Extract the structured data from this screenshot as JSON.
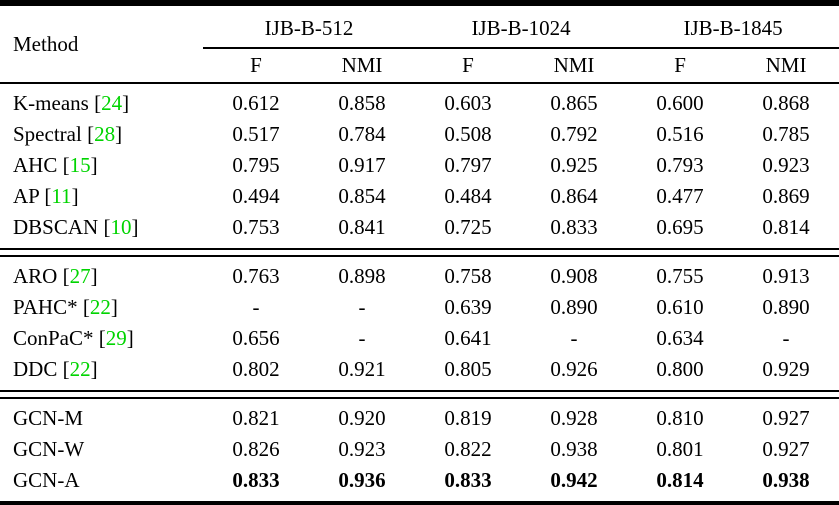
{
  "page": {
    "background": "#ffffff",
    "text_color": "#000000",
    "rule_color": "#000000",
    "citation_color": "#00d400"
  },
  "table": {
    "method_header": "Method",
    "groups": [
      {
        "label": "IJB-B-512"
      },
      {
        "label": "IJB-B-1024"
      },
      {
        "label": "IJB-B-1845"
      }
    ],
    "sub_cols": [
      "F",
      "NMI",
      "F",
      "NMI",
      "F",
      "NMI"
    ],
    "bracket_open": "[",
    "bracket_close": "]",
    "sections": [
      {
        "rows": [
          {
            "method": "K-means",
            "cite": "24",
            "bold": false,
            "values": [
              "0.612",
              "0.858",
              "0.603",
              "0.865",
              "0.600",
              "0.868"
            ]
          },
          {
            "method": "Spectral",
            "cite": "28",
            "bold": false,
            "values": [
              "0.517",
              "0.784",
              "0.508",
              "0.792",
              "0.516",
              "0.785"
            ]
          },
          {
            "method": "AHC",
            "cite": "15",
            "bold": false,
            "values": [
              "0.795",
              "0.917",
              "0.797",
              "0.925",
              "0.793",
              "0.923"
            ]
          },
          {
            "method": "AP",
            "cite": "11",
            "bold": false,
            "values": [
              "0.494",
              "0.854",
              "0.484",
              "0.864",
              "0.477",
              "0.869"
            ]
          },
          {
            "method": "DBSCAN",
            "cite": "10",
            "bold": false,
            "values": [
              "0.753",
              "0.841",
              "0.725",
              "0.833",
              "0.695",
              "0.814"
            ]
          }
        ]
      },
      {
        "rows": [
          {
            "method": "ARO",
            "cite": "27",
            "bold": false,
            "values": [
              "0.763",
              "0.898",
              "0.758",
              "0.908",
              "0.755",
              "0.913"
            ]
          },
          {
            "method": "PAHC*",
            "cite": "22",
            "bold": false,
            "values": [
              "-",
              "-",
              "0.639",
              "0.890",
              "0.610",
              "0.890"
            ]
          },
          {
            "method": "ConPaC*",
            "cite": "29",
            "bold": false,
            "values": [
              "0.656",
              "-",
              "0.641",
              "-",
              "0.634",
              "-"
            ]
          },
          {
            "method": "DDC",
            "cite": "22",
            "bold": false,
            "values": [
              "0.802",
              "0.921",
              "0.805",
              "0.926",
              "0.800",
              "0.929"
            ]
          }
        ]
      },
      {
        "rows": [
          {
            "method": "GCN-M",
            "cite": null,
            "bold": false,
            "values": [
              "0.821",
              "0.920",
              "0.819",
              "0.928",
              "0.810",
              "0.927"
            ]
          },
          {
            "method": "GCN-W",
            "cite": null,
            "bold": false,
            "values": [
              "0.826",
              "0.923",
              "0.822",
              "0.938",
              "0.801",
              "0.927"
            ]
          },
          {
            "method": "GCN-A",
            "cite": null,
            "bold": true,
            "values": [
              "0.833",
              "0.936",
              "0.833",
              "0.942",
              "0.814",
              "0.938"
            ]
          }
        ]
      }
    ]
  }
}
